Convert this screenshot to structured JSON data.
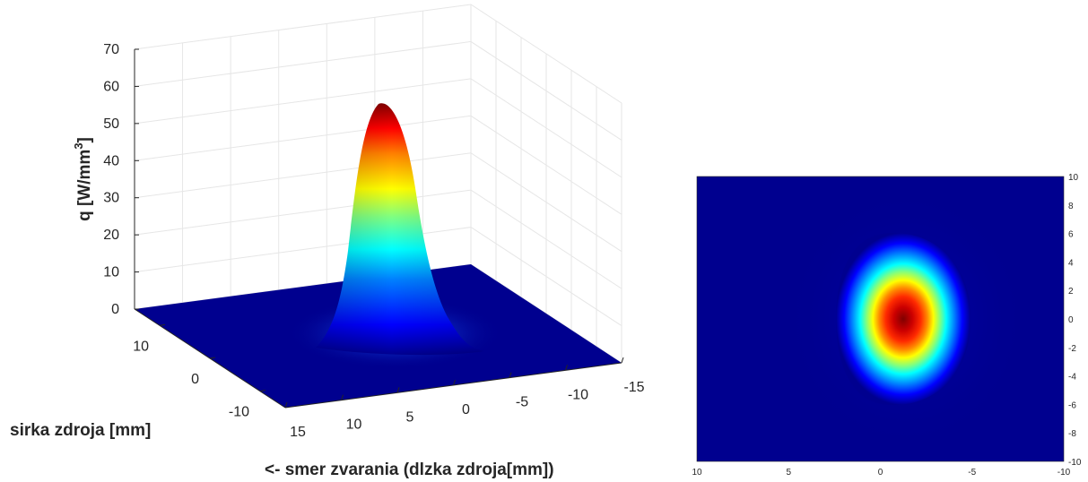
{
  "chart_data": [
    {
      "type": "surface",
      "zlabel": "q [W/mm",
      "zlabel_sup": "3",
      "zlabel_close": "]",
      "ylabel": "sirka zdroja [mm]",
      "xlabel": "<- smer zvarania (dlzka zdroja[mm])",
      "z_ticks": [
        "0",
        "10",
        "20",
        "30",
        "40",
        "50",
        "60",
        "70"
      ],
      "y_ticks": [
        "10",
        "0",
        "-10"
      ],
      "x_ticks": [
        "15",
        "10",
        "5",
        "0",
        "-5",
        "-10",
        "-15"
      ],
      "zlim": [
        0,
        70
      ],
      "xlim": [
        15,
        -15
      ],
      "ylim": [
        15,
        -15
      ],
      "peak": {
        "x": 0,
        "y": 0,
        "z": 60
      },
      "colormap": "jet",
      "grid": true
    },
    {
      "type": "heatmap",
      "x_ticks": [
        "10",
        "5",
        "0",
        "-5",
        "-10"
      ],
      "y_ticks": [
        "10",
        "8",
        "6",
        "4",
        "2",
        "0",
        "-2",
        "-4",
        "-6",
        "-8",
        "-10"
      ],
      "xlim": [
        10,
        -10
      ],
      "ylim": [
        -10,
        10
      ],
      "peak": {
        "x": 0,
        "y": 0
      },
      "colormap": "jet"
    }
  ]
}
